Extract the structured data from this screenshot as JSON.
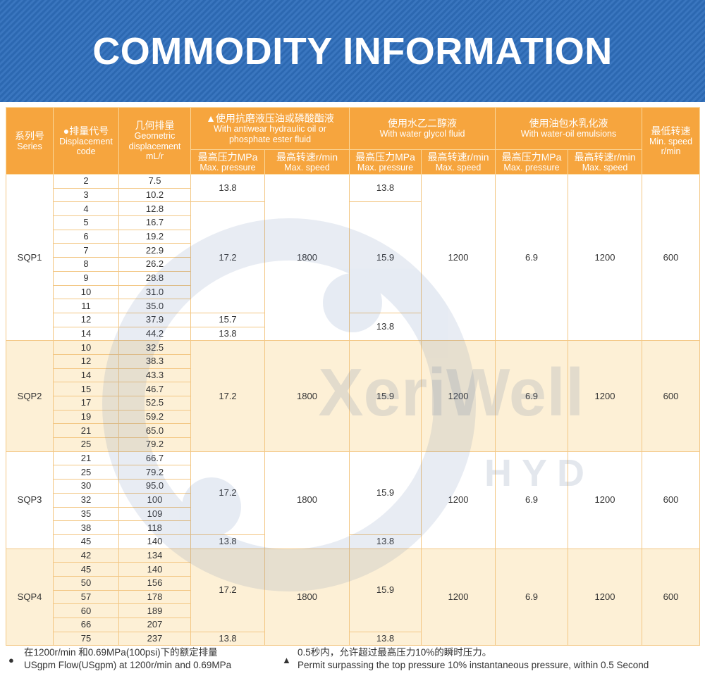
{
  "title": "COMMODITY INFORMATION",
  "table": {
    "header": {
      "series": [
        "系列号",
        "Series"
      ],
      "code": [
        "●排量代号",
        "Displacement",
        "code"
      ],
      "displacement": [
        "几何排量",
        "Geometric",
        "displacement",
        "mL/r"
      ],
      "groups": [
        {
          "lines": [
            "▲使用抗磨液压油或磷酸酯液",
            "With antiwear hydraulic oil or",
            "phosphate ester fluid"
          ],
          "sub": [
            [
              "最高压力MPa",
              "Max. pressure"
            ],
            [
              "最高转速r/min",
              "Max. speed"
            ]
          ]
        },
        {
          "lines": [
            "使用水乙二醇液",
            "With water glycol fluid"
          ],
          "sub": [
            [
              "最高压力MPa",
              "Max. pressure"
            ],
            [
              "最高转速r/min",
              "Max. speed"
            ]
          ]
        },
        {
          "lines": [
            "使用油包水乳化液",
            "With water-oil emulsions"
          ],
          "sub": [
            [
              "最高压力MPa",
              "Max. pressure"
            ],
            [
              "最高转速r/min",
              "Max. speed"
            ]
          ]
        }
      ],
      "min_speed": [
        "最低转速",
        "Min. speed",
        "r/min"
      ]
    },
    "sections": [
      {
        "series": "SQP1",
        "rows": [
          [
            "2",
            "7.5",
            "13.8",
            "1800",
            "13.8",
            "1200",
            "6.9",
            "1200",
            "600"
          ],
          [
            "3",
            "10.2",
            null,
            null,
            null,
            null,
            null,
            null,
            null
          ],
          [
            "4",
            "12.8",
            "17.2",
            null,
            "15.9",
            null,
            null,
            null,
            null
          ],
          [
            "5",
            "16.7",
            null,
            null,
            null,
            null,
            null,
            null,
            null
          ],
          [
            "6",
            "19.2",
            null,
            null,
            null,
            null,
            null,
            null,
            null
          ],
          [
            "7",
            "22.9",
            null,
            null,
            null,
            null,
            null,
            null,
            null
          ],
          [
            "8",
            "26.2",
            null,
            null,
            null,
            null,
            null,
            null,
            null
          ],
          [
            "9",
            "28.8",
            null,
            null,
            null,
            null,
            null,
            null,
            null
          ],
          [
            "10",
            "31.0",
            null,
            null,
            null,
            null,
            null,
            null,
            null
          ],
          [
            "11",
            "35.0",
            null,
            null,
            null,
            null,
            null,
            null,
            null
          ],
          [
            "12",
            "37.9",
            "15.7",
            null,
            "13.8",
            null,
            null,
            null,
            null
          ],
          [
            "14",
            "44.2",
            "13.8",
            null,
            null,
            null,
            null,
            null,
            null
          ]
        ]
      },
      {
        "series": "SQP2",
        "rows": [
          [
            "10",
            "32.5",
            "17.2",
            "1800",
            "15.9",
            "1200",
            "6.9",
            "1200",
            "600"
          ],
          [
            "12",
            "38.3",
            null,
            null,
            null,
            null,
            null,
            null,
            null
          ],
          [
            "14",
            "43.3",
            null,
            null,
            null,
            null,
            null,
            null,
            null
          ],
          [
            "15",
            "46.7",
            null,
            null,
            null,
            null,
            null,
            null,
            null
          ],
          [
            "17",
            "52.5",
            null,
            null,
            null,
            null,
            null,
            null,
            null
          ],
          [
            "19",
            "59.2",
            null,
            null,
            null,
            null,
            null,
            null,
            null
          ],
          [
            "21",
            "65.0",
            null,
            null,
            null,
            null,
            null,
            null,
            null
          ],
          [
            "25",
            "79.2",
            null,
            null,
            null,
            null,
            null,
            null,
            null
          ]
        ]
      },
      {
        "series": "SQP3",
        "rows": [
          [
            "21",
            "66.7",
            "17.2",
            "1800",
            "15.9",
            "1200",
            "6.9",
            "1200",
            "600"
          ],
          [
            "25",
            "79.2",
            null,
            null,
            null,
            null,
            null,
            null,
            null
          ],
          [
            "30",
            "95.0",
            null,
            null,
            null,
            null,
            null,
            null,
            null
          ],
          [
            "32",
            "100",
            null,
            null,
            null,
            null,
            null,
            null,
            null
          ],
          [
            "35",
            "109",
            null,
            null,
            null,
            null,
            null,
            null,
            null
          ],
          [
            "38",
            "118",
            null,
            null,
            null,
            null,
            null,
            null,
            null
          ],
          [
            "45",
            "140",
            "13.8",
            null,
            "13.8",
            null,
            null,
            null,
            null
          ]
        ]
      },
      {
        "series": "SQP4",
        "rows": [
          [
            "42",
            "134",
            "17.2",
            "1800",
            "15.9",
            "1200",
            "6.9",
            "1200",
            "600"
          ],
          [
            "45",
            "140",
            null,
            null,
            null,
            null,
            null,
            null,
            null
          ],
          [
            "50",
            "156",
            null,
            null,
            null,
            null,
            null,
            null,
            null
          ],
          [
            "57",
            "178",
            null,
            null,
            null,
            null,
            null,
            null,
            null
          ],
          [
            "60",
            "189",
            null,
            null,
            null,
            null,
            null,
            null,
            null
          ],
          [
            "66",
            "207",
            null,
            null,
            null,
            null,
            null,
            null,
            null
          ],
          [
            "75",
            "237",
            "13.8",
            null,
            "13.8",
            null,
            null,
            null,
            null
          ]
        ]
      }
    ]
  },
  "notes": [
    {
      "symbol": "●",
      "lines": [
        "在1200r/min 和0.69MPa(100psi)下的额定排量",
        "USgpm Flow(USgpm) at 1200r/min and 0.69MPa"
      ]
    },
    {
      "symbol": "▲",
      "lines": [
        "0.5秒内，允许超过最高压力10%的瞬时压力。",
        "Permit surpassing the top pressure 10% instantaneous pressure, within 0.5 Second"
      ]
    }
  ],
  "watermark": [
    "XeriWell",
    "HYD"
  ]
}
